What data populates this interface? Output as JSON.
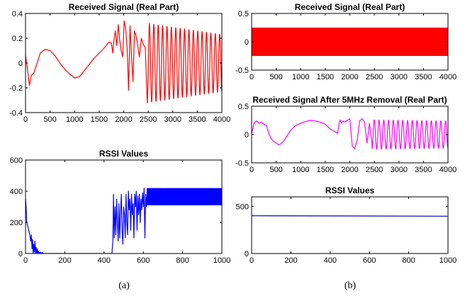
{
  "captions": {
    "left": "(a)",
    "right": "(b)"
  },
  "chart_data": [
    {
      "id": "a-received",
      "type": "line",
      "title": "Received Signal (Real Part)",
      "color": "#ff0000",
      "xlim": [
        0,
        4000
      ],
      "ylim": [
        -0.4,
        0.4
      ],
      "xticks": [
        0,
        500,
        1000,
        1500,
        2000,
        2500,
        3000,
        3500,
        4000
      ],
      "xtick_labels": [
        "0",
        "500",
        "1000",
        "1500",
        "2000",
        "2500",
        "3000",
        "3500",
        "4000"
      ],
      "yticks": [
        -0.4,
        -0.2,
        0,
        0.2,
        0.4
      ],
      "ytick_labels": [
        "-0.4",
        "-0.2",
        "0",
        "0.2",
        "0.4"
      ],
      "x": [
        0,
        40,
        80,
        120,
        170,
        220,
        300,
        400,
        500,
        600,
        700,
        800,
        900,
        1000,
        1100,
        1200,
        1300,
        1400,
        1500,
        1600,
        1700,
        1750,
        1780,
        1800,
        1830,
        1860,
        1890,
        1920,
        1950,
        1980,
        2010,
        2040,
        2070,
        2100,
        2130,
        2160,
        2190,
        2220,
        2250,
        2280,
        2320,
        2360,
        2400,
        2440,
        2480
      ],
      "values": [
        0.06,
        -0.05,
        -0.18,
        -0.1,
        -0.08,
        -0.02,
        0.08,
        0.11,
        0.1,
        0.06,
        0.0,
        -0.05,
        -0.09,
        -0.12,
        -0.11,
        -0.06,
        -0.01,
        0.04,
        0.08,
        0.12,
        0.17,
        0.16,
        0.08,
        0.18,
        0.26,
        0.14,
        0.31,
        0.18,
        0.1,
        0.05,
        0.34,
        0.28,
        0.12,
        -0.22,
        0.3,
        0.05,
        -0.15,
        0.26,
        0.22,
        0.16,
        0.05,
        0.2,
        0.15,
        0.12,
        -0.32
      ],
      "oscillation": {
        "x_start": 2480,
        "x_end": 4000,
        "cycles": 17,
        "amplitude_start": 0.32,
        "amplitude_end": 0.23,
        "center": 0.0
      }
    },
    {
      "id": "a-rssi",
      "type": "line",
      "title": "RSSI Values",
      "color": "#0000ff",
      "xlim": [
        0,
        1000
      ],
      "ylim": [
        0,
        600
      ],
      "xticks": [
        0,
        200,
        400,
        600,
        800,
        1000
      ],
      "xtick_labels": [
        "0",
        "200",
        "400",
        "600",
        "800",
        "1000"
      ],
      "yticks": [
        0,
        200,
        400,
        600
      ],
      "ytick_labels": [
        "0",
        "200",
        "400",
        "600"
      ],
      "x": [
        0,
        3,
        6,
        10,
        14,
        18,
        22,
        26,
        30,
        33,
        36,
        39,
        42,
        45,
        48,
        51,
        54,
        57,
        60,
        63,
        66,
        70,
        75,
        80,
        85,
        90,
        100,
        200,
        300,
        400,
        440,
        445,
        448,
        452,
        456,
        460,
        464,
        468,
        472,
        476,
        480,
        484,
        488,
        492,
        496,
        500,
        504,
        508,
        512,
        516,
        520,
        524,
        528,
        532,
        536,
        540,
        544,
        548,
        552,
        556,
        560,
        564,
        568,
        572,
        576,
        580,
        584,
        588,
        592,
        596,
        600,
        604,
        608,
        612,
        616,
        620
      ],
      "values": [
        350,
        300,
        200,
        180,
        160,
        140,
        120,
        80,
        120,
        30,
        90,
        0,
        60,
        10,
        80,
        0,
        40,
        0,
        30,
        0,
        15,
        0,
        10,
        0,
        8,
        0,
        0,
        0,
        0,
        0,
        0,
        80,
        380,
        100,
        300,
        120,
        350,
        200,
        80,
        320,
        100,
        250,
        380,
        150,
        60,
        300,
        250,
        100,
        380,
        200,
        120,
        400,
        280,
        350,
        150,
        380,
        250,
        320,
        100,
        380,
        300,
        400,
        150,
        370,
        250,
        380,
        200,
        350,
        280,
        390,
        300,
        420,
        100,
        380,
        300,
        420
      ],
      "band": {
        "x_start": 620,
        "x_end": 1000,
        "low": 310,
        "high": 420
      }
    },
    {
      "id": "b-received",
      "type": "line",
      "title": "Received Signal (Real Part)",
      "color": "#ff0000",
      "xlim": [
        0,
        4000
      ],
      "ylim": [
        -0.5,
        0.5
      ],
      "xticks": [
        0,
        500,
        1000,
        1500,
        2000,
        2500,
        3000,
        3500,
        4000
      ],
      "xtick_labels": [
        "0",
        "500",
        "1000",
        "1500",
        "2000",
        "2500",
        "3000",
        "3500",
        "4000"
      ],
      "yticks": [
        -0.5,
        0,
        0.5
      ],
      "ytick_labels": [
        "-0.5",
        "0",
        "0.5"
      ],
      "band": {
        "x_start": 0,
        "x_end": 4000,
        "low": -0.25,
        "high": 0.25
      }
    },
    {
      "id": "b-removal",
      "type": "line",
      "title": "Received Signal After 5MHz Removal (Real Part)",
      "color": "#ff00ff",
      "xlim": [
        0,
        4000
      ],
      "ylim": [
        -0.5,
        0.5
      ],
      "xticks": [
        0,
        500,
        1000,
        1500,
        2000,
        2500,
        3000,
        3500,
        4000
      ],
      "xtick_labels": [
        "0",
        "500",
        "1000",
        "1500",
        "2000",
        "2500",
        "3000",
        "3500",
        "4000"
      ],
      "yticks": [
        -0.5,
        0,
        0.5
      ],
      "ytick_labels": [
        "-0.5",
        "0",
        "0.5"
      ],
      "x": [
        0,
        50,
        100,
        150,
        200,
        250,
        300,
        350,
        400,
        450,
        500,
        550,
        600,
        650,
        700,
        800,
        900,
        1000,
        1100,
        1200,
        1300,
        1400,
        1500,
        1600,
        1700,
        1750,
        1780,
        1800,
        1830,
        1860,
        1900,
        1950,
        2000,
        2050,
        2100,
        2150,
        2200,
        2250,
        2300,
        2350,
        2400,
        2450
      ],
      "values": [
        0.02,
        0.2,
        0.24,
        0.2,
        0.22,
        0.18,
        0.16,
        0.02,
        -0.08,
        -0.12,
        -0.15,
        -0.18,
        -0.16,
        -0.12,
        -0.05,
        0.08,
        0.16,
        0.2,
        0.23,
        0.25,
        0.24,
        0.22,
        0.18,
        0.1,
        0.05,
        0.02,
        0.18,
        0.26,
        0.2,
        0.24,
        0.22,
        0.25,
        0.28,
        -0.2,
        -0.25,
        -0.1,
        0.24,
        0.28,
        0.22,
        -0.15,
        0.2,
        -0.15
      ],
      "oscillation": {
        "x_start": 2450,
        "x_end": 4000,
        "cycles": 16,
        "amplitude_start": 0.26,
        "amplitude_end": 0.24,
        "center": 0.0
      }
    },
    {
      "id": "b-rssi",
      "type": "line",
      "title": "RSSI Values",
      "color": "#0000cc",
      "xlim": [
        0,
        1000
      ],
      "ylim": [
        0,
        600
      ],
      "xticks": [
        0,
        200,
        400,
        600,
        800,
        1000
      ],
      "xtick_labels": [
        "0",
        "200",
        "400",
        "600",
        "800",
        "1000"
      ],
      "yticks": [
        0,
        500
      ],
      "ytick_labels": [
        "0",
        "500"
      ],
      "x": [
        0,
        1000
      ],
      "values": [
        400,
        395
      ]
    }
  ]
}
